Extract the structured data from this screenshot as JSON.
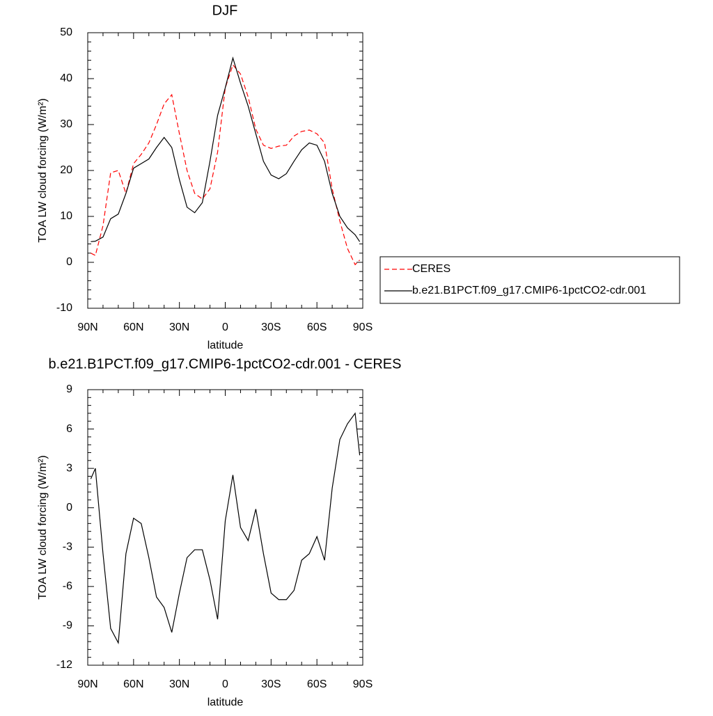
{
  "chart_data": [
    {
      "type": "line",
      "title": "DJF",
      "x_label": "latitude",
      "y_label": "TOA LW cloud forcing (W/m²)",
      "x": [
        88,
        85,
        80,
        75,
        70,
        65,
        60,
        55,
        50,
        45,
        40,
        35,
        30,
        25,
        20,
        15,
        10,
        5,
        0,
        -5,
        -10,
        -15,
        -20,
        -25,
        -30,
        -35,
        -40,
        -45,
        -50,
        -55,
        -60,
        -65,
        -70,
        -75,
        -80,
        -85,
        -88
      ],
      "series": [
        {
          "name": "CERES",
          "color": "#ff0000",
          "line_style": "dashed",
          "values": [
            2,
            1.5,
            8,
            19.5,
            20,
            15,
            21.5,
            23.5,
            26,
            30,
            34.5,
            36.5,
            28,
            20,
            15,
            13.8,
            16,
            24,
            38,
            43,
            41,
            36,
            29,
            25.5,
            24.8,
            25.3,
            25.5,
            27.5,
            28.5,
            28.8,
            28,
            26,
            16,
            9,
            3,
            -0.5,
            0.5
          ]
        },
        {
          "name": "b.e21.B1PCT.f09_g17.CMIP6-1pctCO2-cdr.001",
          "color": "#000000",
          "line_style": "solid",
          "values": [
            4.5,
            4.6,
            5.5,
            9.5,
            10.5,
            15,
            20.5,
            21.5,
            22.5,
            25,
            27.2,
            25,
            18,
            12,
            10.8,
            13,
            22,
            32,
            38,
            44.5,
            39,
            34,
            28,
            22,
            19,
            18.2,
            19.3,
            22,
            24.5,
            26,
            25.5,
            22,
            15,
            10,
            7.5,
            6,
            4.5
          ]
        }
      ],
      "xlim": [
        90,
        -90
      ],
      "xticks": [
        {
          "value": 90,
          "label": "90N"
        },
        {
          "value": 60,
          "label": "60N"
        },
        {
          "value": 30,
          "label": "30N"
        },
        0,
        {
          "value": -30,
          "label": "30S"
        },
        {
          "value": -60,
          "label": "60S"
        },
        {
          "value": -90,
          "label": "90S"
        }
      ],
      "ylim": [
        -10,
        50
      ],
      "yticks": [
        -10,
        0,
        10,
        20,
        30,
        40,
        50
      ],
      "legend": "right"
    },
    {
      "type": "line",
      "title": "b.e21.B1PCT.f09_g17.CMIP6-1pctCO2-cdr.001 - CERES",
      "x_label": "latitude",
      "y_label": "TOA LW cloud forcing (W/m²)",
      "x": [
        88,
        85,
        80,
        75,
        70,
        65,
        60,
        55,
        50,
        45,
        40,
        35,
        30,
        25,
        20,
        15,
        10,
        5,
        0,
        -5,
        -10,
        -15,
        -20,
        -25,
        -30,
        -35,
        -40,
        -45,
        -50,
        -55,
        -60,
        -65,
        -70,
        -75,
        -80,
        -85,
        -88
      ],
      "values": [
        2.2,
        3.0,
        -3.5,
        -9.2,
        -10.3,
        -3.5,
        -0.8,
        -1.2,
        -3.8,
        -6.8,
        -7.6,
        -9.5,
        -6.5,
        -3.8,
        -3.2,
        -3.2,
        -5.5,
        -8.5,
        -1,
        2.5,
        -1.5,
        -2.5,
        -0.1,
        -3.5,
        -6.5,
        -7,
        -7,
        -6.3,
        -4,
        -3.5,
        -2.2,
        -4,
        1.5,
        5.2,
        6.4,
        7.2,
        4
      ],
      "color": "#000000",
      "xlim": [
        90,
        -90
      ],
      "xticks": [
        {
          "value": 90,
          "label": "90N"
        },
        {
          "value": 60,
          "label": "60N"
        },
        {
          "value": 30,
          "label": "30N"
        },
        0,
        {
          "value": -30,
          "label": "30S"
        },
        {
          "value": -60,
          "label": "60S"
        },
        {
          "value": -90,
          "label": "90S"
        }
      ],
      "ylim": [
        -12,
        9
      ],
      "yticks": [
        -12,
        -9,
        -6,
        -3,
        0,
        3,
        6,
        9
      ]
    }
  ]
}
